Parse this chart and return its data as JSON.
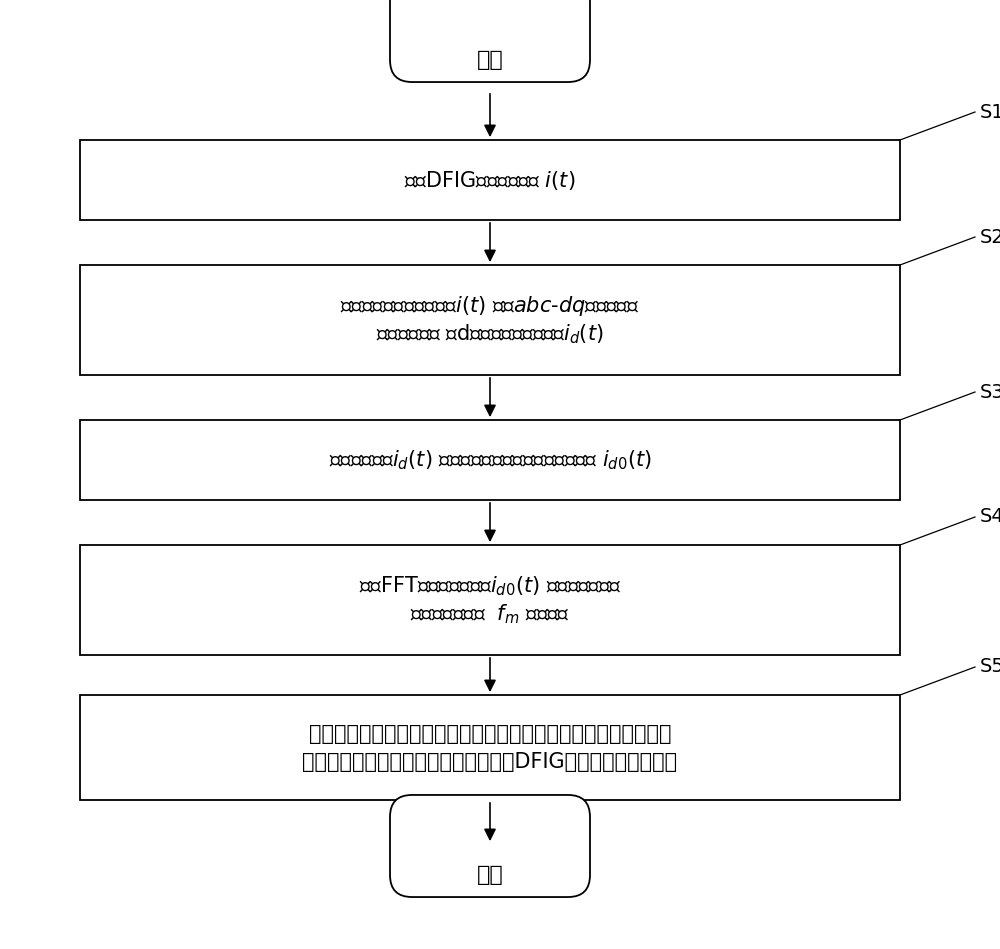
{
  "background_color": "#ffffff",
  "start_end_label": [
    "开始",
    "结束"
  ],
  "steps": [
    {
      "id": "S1",
      "lines": [
        "采集DFIG定子三相电流 $i(t)$"
      ],
      "multiline": false
    },
    {
      "id": "S2",
      "lines": [
        "对采集到的定子三相电流$i(t)$ 进行$abc$-$dq$坐标变换，",
        "得到三相电流 在d轴方向上的电流分量$i_d(t)$"
      ],
      "multiline": true
    },
    {
      "id": "S3",
      "lines": [
        "利用电流分量$i_d(t)$ 计算仅含特征频率的故障特征信息 $i_{d0}(t)$"
      ],
      "multiline": false
    },
    {
      "id": "S4",
      "lines": [
        "利用FFT对故障特征信息$i_{d0}(t)$ 进行频谱分析，",
        "提取出特征频率  $f_m$ 处的幅值"
      ],
      "multiline": true
    },
    {
      "id": "S5",
      "lines": [
        "将提取出的幅值与同一工况正常情况下特征频率处的幅值进行比较",
        "，进而确定对应的故障严重程度，实现DFIG叶轮不平衡故障诊断"
      ],
      "multiline": true
    }
  ],
  "box_color": "#ffffff",
  "box_edge_color": "#000000",
  "arrow_color": "#000000",
  "label_color": "#000000",
  "font_size": 15,
  "side_label_size": 14
}
